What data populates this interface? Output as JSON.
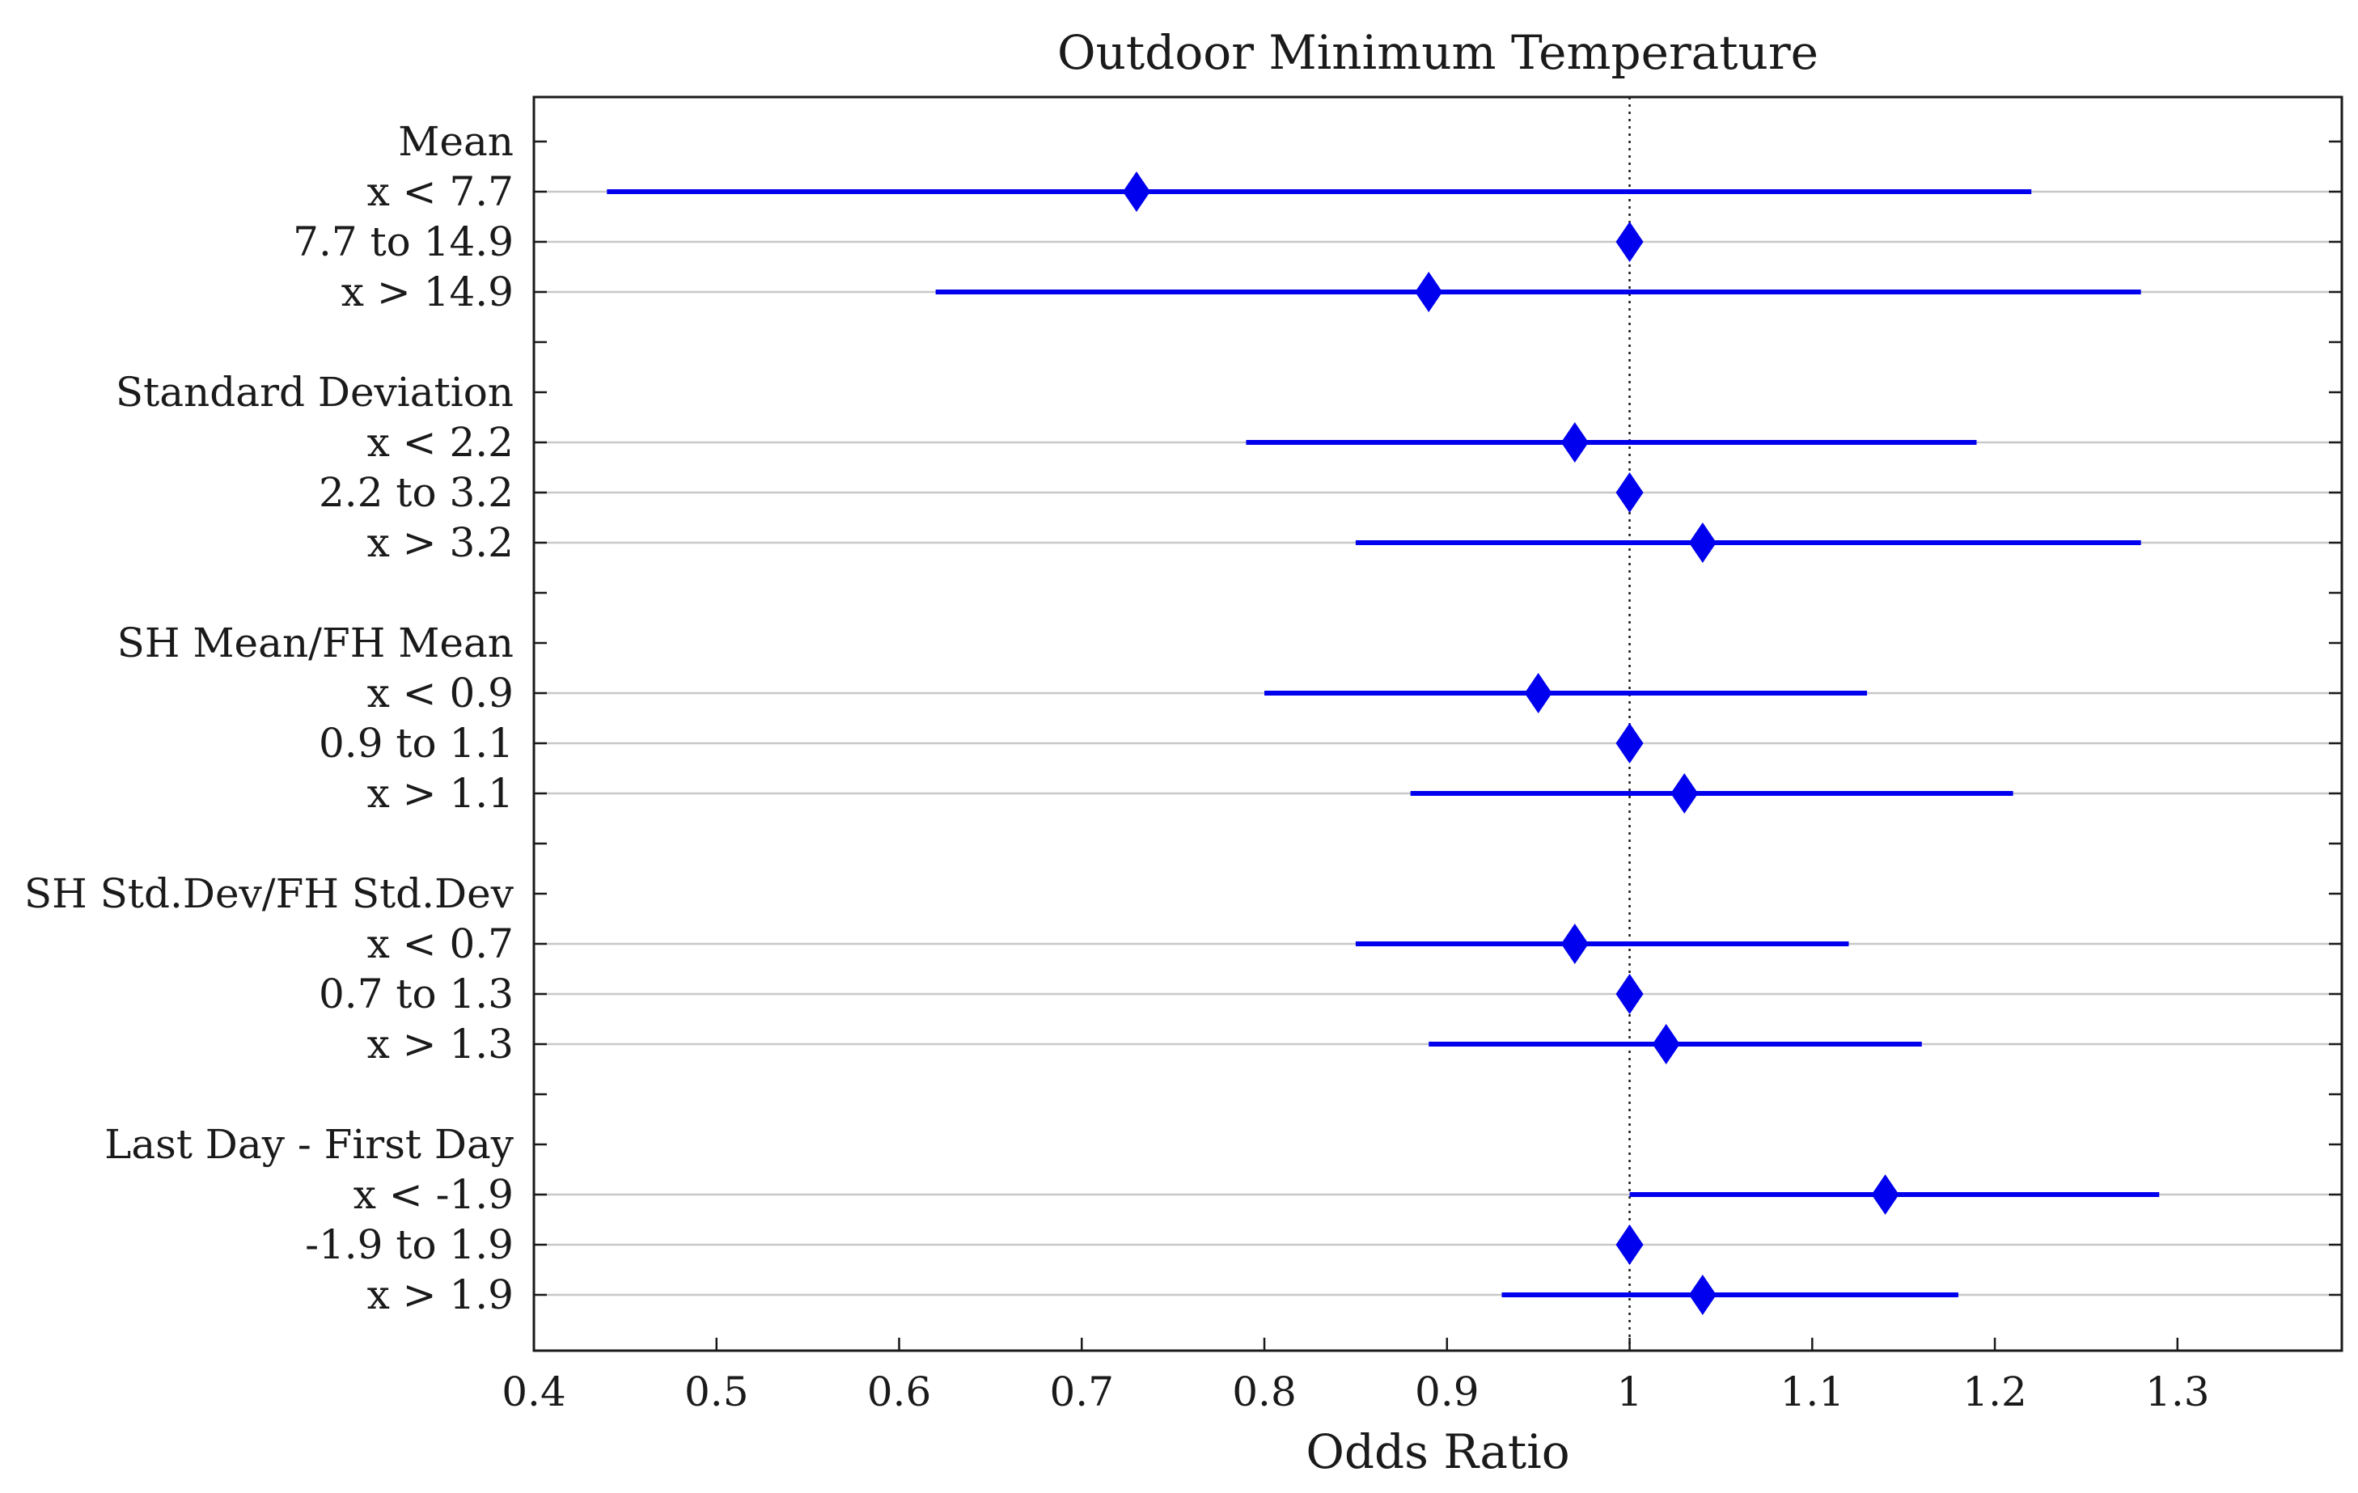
{
  "chart_data": {
    "type": "forest",
    "title": "Outdoor Minimum Temperature",
    "xlabel": "Odds Ratio",
    "ylabel": "",
    "xlim": [
      0.4,
      1.39
    ],
    "xticks": [
      0.4,
      0.5,
      0.6,
      0.7,
      0.8,
      0.9,
      1,
      1.1,
      1.2,
      1.3
    ],
    "xtick_labels": [
      "0.4",
      "0.5",
      "0.6",
      "0.7",
      "0.8",
      "0.9",
      "1",
      "1.1",
      "1.2",
      "1.3"
    ],
    "reference_line": 1,
    "grid": "horizontal",
    "color": "#0000ee",
    "rows": [
      {
        "label": "Mean",
        "header": true
      },
      {
        "label": "x < 7.7",
        "or": 0.73,
        "lo": 0.44,
        "hi": 1.22
      },
      {
        "label": "7.7 to 14.9",
        "or": 1.0
      },
      {
        "label": "x > 14.9",
        "or": 0.89,
        "lo": 0.62,
        "hi": 1.28
      },
      {
        "label": "",
        "spacer": true
      },
      {
        "label": "Standard Deviation",
        "header": true
      },
      {
        "label": "x < 2.2",
        "or": 0.97,
        "lo": 0.79,
        "hi": 1.19
      },
      {
        "label": "2.2 to 3.2",
        "or": 1.0
      },
      {
        "label": "x > 3.2",
        "or": 1.04,
        "lo": 0.85,
        "hi": 1.28
      },
      {
        "label": "",
        "spacer": true
      },
      {
        "label": "SH Mean/FH Mean",
        "header": true
      },
      {
        "label": "x < 0.9",
        "or": 0.95,
        "lo": 0.8,
        "hi": 1.13
      },
      {
        "label": "0.9 to 1.1",
        "or": 1.0
      },
      {
        "label": "x > 1.1",
        "or": 1.03,
        "lo": 0.88,
        "hi": 1.21
      },
      {
        "label": "",
        "spacer": true
      },
      {
        "label": "SH Std.Dev/FH Std.Dev",
        "header": true
      },
      {
        "label": "x < 0.7",
        "or": 0.97,
        "lo": 0.85,
        "hi": 1.12
      },
      {
        "label": "0.7 to 1.3",
        "or": 1.0
      },
      {
        "label": "x > 1.3",
        "or": 1.02,
        "lo": 0.89,
        "hi": 1.16
      },
      {
        "label": "",
        "spacer": true
      },
      {
        "label": "Last Day - First Day",
        "header": true
      },
      {
        "label": "x < -1.9",
        "or": 1.14,
        "lo": 1.0,
        "hi": 1.29
      },
      {
        "label": "-1.9 to 1.9",
        "or": 1.0
      },
      {
        "label": "x > 1.9",
        "or": 1.04,
        "lo": 0.93,
        "hi": 1.18
      }
    ]
  }
}
